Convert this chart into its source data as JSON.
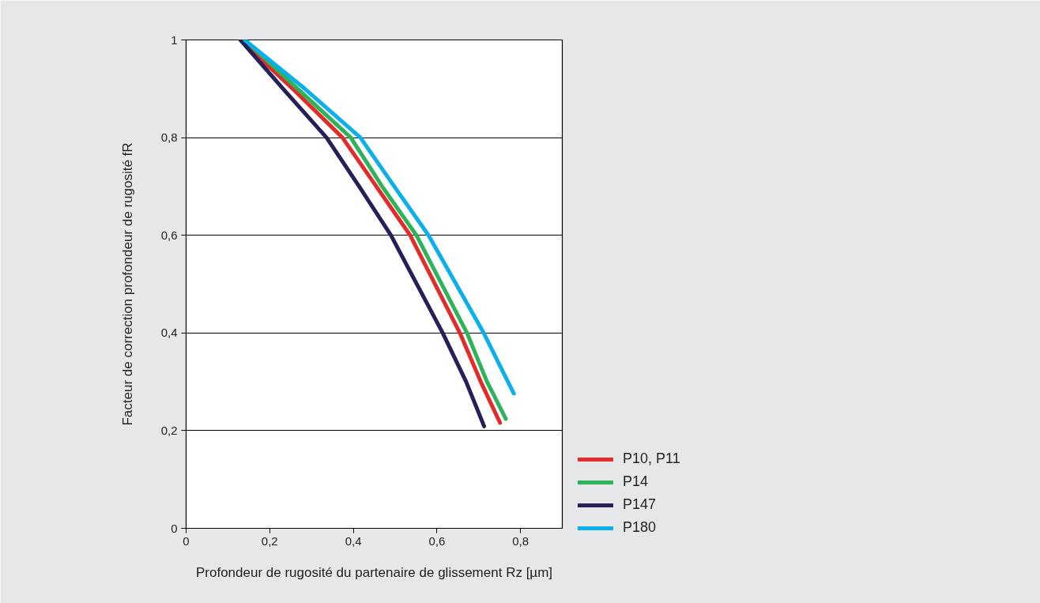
{
  "chart_data": {
    "type": "line",
    "xlabel": "Profondeur de rugosité du partenaire de glissement Rz [µm]",
    "ylabel": "Facteur de correction profondeur de rugosité fR",
    "xlim": [
      0,
      0.9
    ],
    "ylim": [
      0,
      1
    ],
    "xticks": [
      0,
      {
        "value": 0.2,
        "label": "0,2"
      },
      {
        "value": 0.4,
        "label": "0,4"
      },
      {
        "value": 0.6,
        "label": "0,6"
      },
      {
        "value": 0.8,
        "label": "0,8"
      }
    ],
    "yticks": [
      0,
      {
        "value": 0.2,
        "label": "0,2"
      },
      {
        "value": 0.4,
        "label": "0,4"
      },
      {
        "value": 0.6,
        "label": "0,6"
      },
      {
        "value": 0.8,
        "label": "0,8"
      },
      1
    ],
    "grid": "y",
    "legend": "bottom right",
    "line_style": "solid",
    "marker": "none",
    "series": [
      {
        "name": "P10, P11",
        "color": "#e32b2b",
        "x": [
          0.13,
          0.255,
          0.374,
          0.455,
          0.536,
          0.655,
          0.705,
          0.751
        ],
        "values": [
          1,
          0.9,
          0.8,
          0.7,
          0.6,
          0.4,
          0.3,
          0.216
        ]
      },
      {
        "name": "P14",
        "color": "#2db35a",
        "x": [
          0.14,
          0.267,
          0.394,
          0.469,
          0.551,
          0.672,
          0.72,
          0.765
        ],
        "values": [
          1,
          0.9,
          0.8,
          0.7,
          0.6,
          0.4,
          0.3,
          0.224
        ]
      },
      {
        "name": "P147",
        "color": "#252058",
        "x": [
          0.13,
          0.232,
          0.336,
          0.414,
          0.49,
          0.614,
          0.67,
          0.713
        ],
        "values": [
          1,
          0.9,
          0.8,
          0.7,
          0.6,
          0.4,
          0.3,
          0.209
        ]
      },
      {
        "name": "P180",
        "color": "#0bb0ea",
        "x": [
          0.14,
          0.284,
          0.417,
          0.498,
          0.58,
          0.712,
          0.77,
          0.784
        ],
        "values": [
          1,
          0.9,
          0.8,
          0.7,
          0.6,
          0.4,
          0.3,
          0.276
        ]
      }
    ]
  }
}
